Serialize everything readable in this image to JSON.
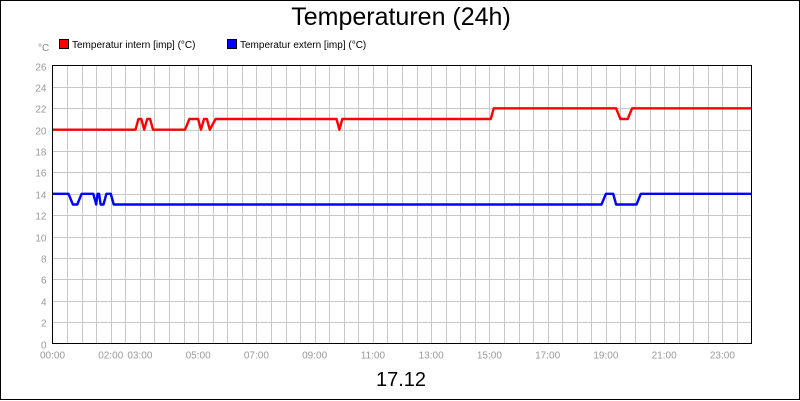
{
  "chart_data": {
    "type": "line",
    "title": "Temperaturen (24h)",
    "unit_label": "°C",
    "footer_label": "17.12",
    "xlim": [
      0,
      24
    ],
    "ylim": [
      0,
      26
    ],
    "y_ticks": [
      0,
      2,
      4,
      6,
      8,
      10,
      12,
      14,
      16,
      18,
      20,
      22,
      24,
      26
    ],
    "x_ticks": [
      {
        "t": 0,
        "label": "00:00"
      },
      {
        "t": 2,
        "label": "02:00"
      },
      {
        "t": 3,
        "label": "03:00"
      },
      {
        "t": 5,
        "label": "05:00"
      },
      {
        "t": 7,
        "label": "07:00"
      },
      {
        "t": 9,
        "label": "09:00"
      },
      {
        "t": 11,
        "label": "11:00"
      },
      {
        "t": 13,
        "label": "13:00"
      },
      {
        "t": 15,
        "label": "15:00"
      },
      {
        "t": 17,
        "label": "17:00"
      },
      {
        "t": 19,
        "label": "19:00"
      },
      {
        "t": 21,
        "label": "21:00"
      },
      {
        "t": 23,
        "label": "23:00"
      }
    ],
    "grid": true,
    "series": [
      {
        "name": "Temperatur intern [imp] (°C)",
        "color": "#ff0000",
        "points": [
          [
            0,
            20
          ],
          [
            2.85,
            20
          ],
          [
            2.95,
            21
          ],
          [
            3.05,
            21
          ],
          [
            3.15,
            20
          ],
          [
            3.25,
            21
          ],
          [
            3.35,
            21
          ],
          [
            3.45,
            20
          ],
          [
            4.55,
            20
          ],
          [
            4.7,
            21
          ],
          [
            5.0,
            21
          ],
          [
            5.1,
            20
          ],
          [
            5.2,
            21
          ],
          [
            5.3,
            21
          ],
          [
            5.4,
            20
          ],
          [
            5.6,
            21
          ],
          [
            9.75,
            21
          ],
          [
            9.85,
            20
          ],
          [
            9.95,
            21
          ],
          [
            15.05,
            21
          ],
          [
            15.15,
            22
          ],
          [
            19.35,
            22
          ],
          [
            19.5,
            21
          ],
          [
            19.75,
            21
          ],
          [
            19.9,
            22
          ],
          [
            24,
            22
          ]
        ]
      },
      {
        "name": "Temperatur extern [imp] (°C)",
        "color": "#0000ff",
        "points": [
          [
            0,
            14
          ],
          [
            0.55,
            14
          ],
          [
            0.7,
            13
          ],
          [
            0.85,
            13
          ],
          [
            1.0,
            14
          ],
          [
            1.4,
            14
          ],
          [
            1.5,
            13
          ],
          [
            1.55,
            14
          ],
          [
            1.6,
            14
          ],
          [
            1.65,
            13
          ],
          [
            1.75,
            13
          ],
          [
            1.85,
            14
          ],
          [
            2.0,
            14
          ],
          [
            2.1,
            13
          ],
          [
            18.85,
            13
          ],
          [
            19.0,
            14
          ],
          [
            19.25,
            14
          ],
          [
            19.35,
            13
          ],
          [
            20.05,
            13
          ],
          [
            20.2,
            14
          ],
          [
            24,
            14
          ]
        ]
      }
    ]
  }
}
